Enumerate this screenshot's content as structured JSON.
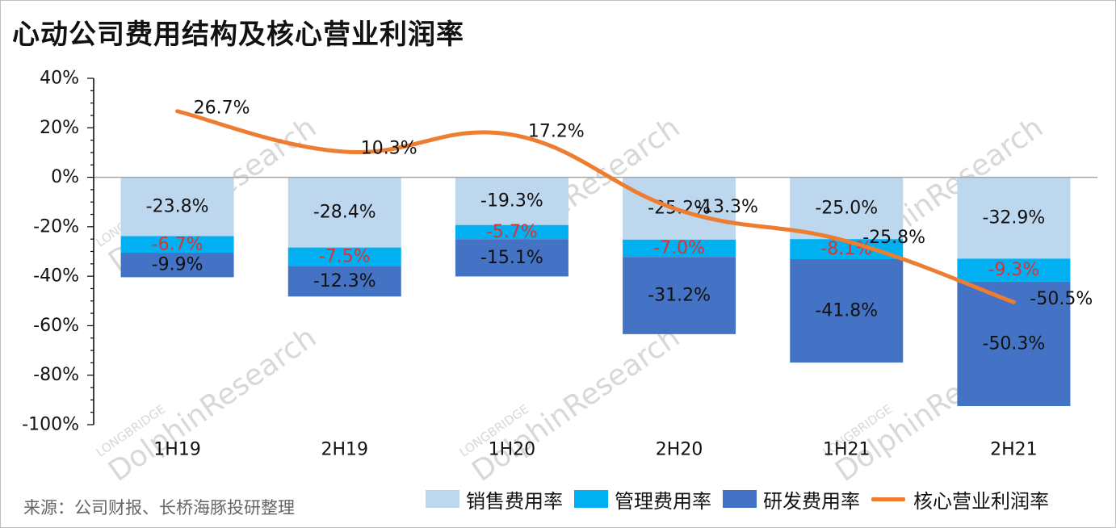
{
  "title": "心动公司费用结构及核心营业利润率",
  "source": "来源：公司财报、长桥海豚投研整理",
  "watermark": {
    "brand": "LONGBRIDGE",
    "name": "DolphinResearch"
  },
  "colors": {
    "sales": "#bdd7ee",
    "admin": "#00b0f0",
    "rnd": "#4472c4",
    "margin": "#ed7d31",
    "admin_label": "#e03030",
    "axis": "#000000"
  },
  "legend": [
    {
      "key": "sales",
      "label": "销售费用率",
      "kind": "box"
    },
    {
      "key": "admin",
      "label": "管理费用率",
      "kind": "box"
    },
    {
      "key": "rnd",
      "label": "研发费用率",
      "kind": "box"
    },
    {
      "key": "margin",
      "label": "核心营业利润率",
      "kind": "line"
    }
  ],
  "chart_data": {
    "type": "bar",
    "stacked": true,
    "categories": [
      "1H19",
      "2H19",
      "1H20",
      "2H20",
      "1H21",
      "2H21"
    ],
    "ylim": [
      -100,
      40
    ],
    "yticks": [
      40,
      20,
      0,
      -20,
      -40,
      -60,
      -80,
      -100
    ],
    "ytick_labels": [
      "40%",
      "20%",
      "0%",
      "-20%",
      "-40%",
      "-60%",
      "-80%",
      "-100%"
    ],
    "series": [
      {
        "name": "销售费用率",
        "key": "sales",
        "kind": "bar",
        "values": [
          -23.8,
          -28.4,
          -19.3,
          -25.2,
          -25.0,
          -32.9
        ],
        "labels": [
          "-23.8%",
          "-28.4%",
          "-19.3%",
          "-25.2%",
          "-25.0%",
          "-32.9%"
        ]
      },
      {
        "name": "管理费用率",
        "key": "admin",
        "kind": "bar",
        "values": [
          -6.7,
          -7.5,
          -5.7,
          -7.0,
          -8.1,
          -9.3
        ],
        "labels": [
          "-6.7%",
          "-7.5%",
          "-5.7%",
          "-7.0%",
          "-8.1%",
          "-9.3%"
        ]
      },
      {
        "name": "研发费用率",
        "key": "rnd",
        "kind": "bar",
        "values": [
          -9.9,
          -12.3,
          -15.1,
          -31.2,
          -41.8,
          -50.3
        ],
        "labels": [
          "-9.9%",
          "-12.3%",
          "-15.1%",
          "-31.2%",
          "-41.8%",
          "-50.3%"
        ]
      },
      {
        "name": "核心营业利润率",
        "key": "margin",
        "kind": "line",
        "values": [
          26.7,
          10.3,
          17.2,
          -13.3,
          -25.8,
          -50.5
        ],
        "labels": [
          "26.7%",
          "10.3%",
          "17.2%",
          "-13.3%",
          "-25.8%",
          "-50.5%"
        ]
      }
    ]
  }
}
